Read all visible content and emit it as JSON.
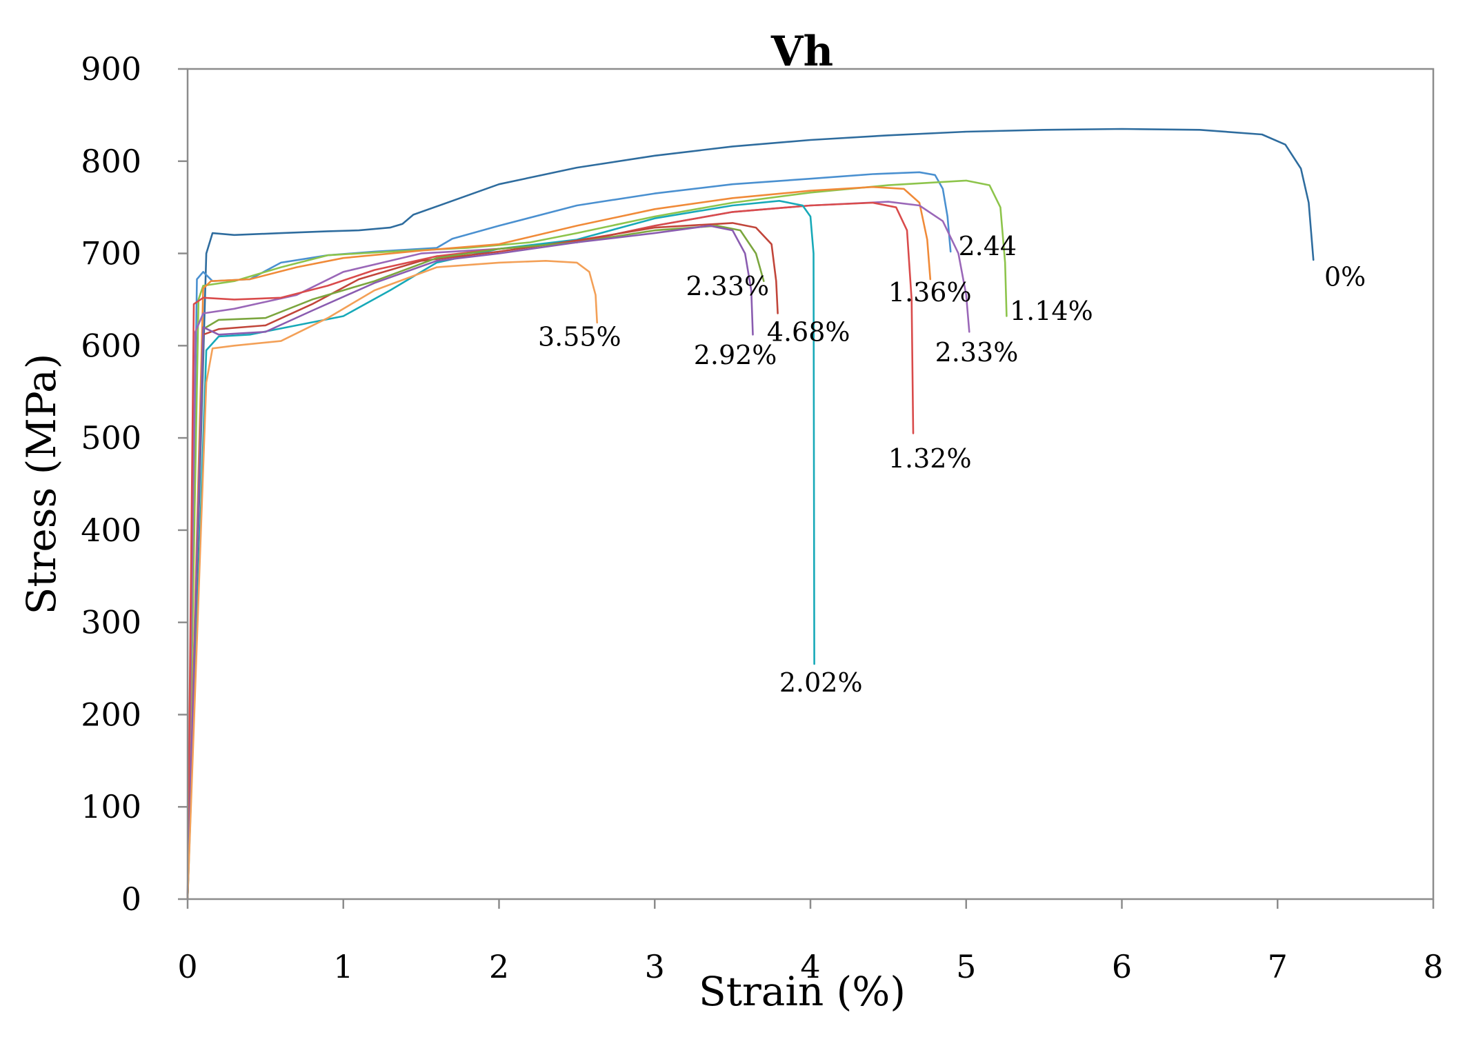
{
  "chart_data": {
    "type": "line",
    "title": "Vh",
    "xlabel": "Strain (%)",
    "ylabel": "Stress (MPa)",
    "xlim": [
      0,
      8
    ],
    "ylim": [
      0,
      900
    ],
    "xticks": [
      "0",
      "1",
      "2",
      "3",
      "4",
      "5",
      "6",
      "7",
      "8"
    ],
    "yticks": [
      "0",
      "100",
      "200",
      "300",
      "400",
      "500",
      "600",
      "700",
      "800",
      "900"
    ],
    "grid": false,
    "series": [
      {
        "name": "0%",
        "color": "#2e6c9e",
        "label": "0%",
        "label_at": [
          7.3,
          665
        ],
        "points": [
          [
            0,
            0
          ],
          [
            0.12,
            700
          ],
          [
            0.16,
            722
          ],
          [
            0.3,
            720
          ],
          [
            0.6,
            722
          ],
          [
            0.9,
            724
          ],
          [
            1.1,
            725
          ],
          [
            1.3,
            728
          ],
          [
            1.38,
            732
          ],
          [
            1.45,
            742
          ],
          [
            2,
            775
          ],
          [
            2.5,
            793
          ],
          [
            3,
            806
          ],
          [
            3.5,
            816
          ],
          [
            4,
            823
          ],
          [
            4.5,
            828
          ],
          [
            5,
            832
          ],
          [
            5.5,
            834
          ],
          [
            6,
            835
          ],
          [
            6.5,
            834
          ],
          [
            6.9,
            829
          ],
          [
            7.05,
            818
          ],
          [
            7.15,
            792
          ],
          [
            7.2,
            755
          ],
          [
            7.23,
            693
          ]
        ]
      },
      {
        "name": "2.44",
        "color": "#4a90d0",
        "label": "2.44",
        "label_at": [
          4.95,
          698
        ],
        "points": [
          [
            0,
            0
          ],
          [
            0.06,
            672
          ],
          [
            0.1,
            680
          ],
          [
            0.16,
            670
          ],
          [
            0.4,
            672
          ],
          [
            0.6,
            690
          ],
          [
            0.9,
            698
          ],
          [
            1.2,
            702
          ],
          [
            1.6,
            706
          ],
          [
            1.7,
            716
          ],
          [
            2,
            730
          ],
          [
            2.5,
            752
          ],
          [
            3,
            765
          ],
          [
            3.5,
            775
          ],
          [
            4,
            781
          ],
          [
            4.4,
            786
          ],
          [
            4.7,
            788
          ],
          [
            4.8,
            785
          ],
          [
            4.85,
            770
          ],
          [
            4.88,
            740
          ],
          [
            4.9,
            702
          ]
        ]
      },
      {
        "name": "1.14%",
        "color": "#8dc44b",
        "label": "1.14%",
        "label_at": [
          5.28,
          628
        ],
        "points": [
          [
            0,
            0
          ],
          [
            0.07,
            650
          ],
          [
            0.1,
            665
          ],
          [
            0.3,
            670
          ],
          [
            0.6,
            685
          ],
          [
            0.9,
            698
          ],
          [
            1.3,
            702
          ],
          [
            1.8,
            706
          ],
          [
            2.2,
            712
          ],
          [
            2.5,
            722
          ],
          [
            3,
            740
          ],
          [
            3.5,
            755
          ],
          [
            4,
            766
          ],
          [
            4.5,
            774
          ],
          [
            5,
            779
          ],
          [
            5.15,
            774
          ],
          [
            5.22,
            750
          ],
          [
            5.25,
            690
          ],
          [
            5.26,
            632
          ]
        ]
      },
      {
        "name": "1.36%",
        "color": "#f08a38",
        "label": "1.36%",
        "label_at": [
          4.5,
          648
        ],
        "points": [
          [
            0,
            0
          ],
          [
            0.1,
            662
          ],
          [
            0.15,
            670
          ],
          [
            0.4,
            672
          ],
          [
            0.7,
            685
          ],
          [
            1,
            695
          ],
          [
            1.5,
            703
          ],
          [
            2,
            710
          ],
          [
            2.5,
            730
          ],
          [
            3,
            748
          ],
          [
            3.5,
            760
          ],
          [
            4,
            768
          ],
          [
            4.4,
            772
          ],
          [
            4.6,
            770
          ],
          [
            4.7,
            755
          ],
          [
            4.75,
            715
          ],
          [
            4.77,
            672
          ]
        ]
      },
      {
        "name": "2.33% (right)",
        "color": "#9a67b8",
        "label": "2.33%",
        "label_at": [
          4.8,
          583
        ],
        "points": [
          [
            0,
            0
          ],
          [
            0.05,
            615
          ],
          [
            0.1,
            635
          ],
          [
            0.3,
            640
          ],
          [
            0.7,
            655
          ],
          [
            1,
            680
          ],
          [
            1.5,
            700
          ],
          [
            2,
            705
          ],
          [
            2.5,
            712
          ],
          [
            3,
            730
          ],
          [
            3.5,
            745
          ],
          [
            4,
            752
          ],
          [
            4.5,
            756
          ],
          [
            4.7,
            752
          ],
          [
            4.85,
            735
          ],
          [
            4.95,
            700
          ],
          [
            5,
            655
          ],
          [
            5.02,
            615
          ]
        ]
      },
      {
        "name": "1.32%",
        "color": "#d94b4b",
        "label": "1.32%",
        "label_at": [
          4.5,
          468
        ],
        "points": [
          [
            0,
            0
          ],
          [
            0.04,
            645
          ],
          [
            0.1,
            652
          ],
          [
            0.3,
            650
          ],
          [
            0.6,
            652
          ],
          [
            0.9,
            665
          ],
          [
            1.2,
            682
          ],
          [
            1.6,
            697
          ],
          [
            2,
            705
          ],
          [
            2.5,
            712
          ],
          [
            3,
            730
          ],
          [
            3.5,
            745
          ],
          [
            4,
            752
          ],
          [
            4.4,
            755
          ],
          [
            4.55,
            750
          ],
          [
            4.62,
            725
          ],
          [
            4.65,
            650
          ],
          [
            4.66,
            505
          ]
        ]
      },
      {
        "name": "2.02%",
        "color": "#17a9b8",
        "label": "2.02%",
        "label_at": [
          3.8,
          225
        ],
        "points": [
          [
            0,
            0
          ],
          [
            0.12,
            595
          ],
          [
            0.2,
            610
          ],
          [
            0.4,
            612
          ],
          [
            0.7,
            622
          ],
          [
            1,
            632
          ],
          [
            1.3,
            660
          ],
          [
            1.6,
            690
          ],
          [
            2,
            705
          ],
          [
            2.5,
            715
          ],
          [
            3,
            738
          ],
          [
            3.5,
            752
          ],
          [
            3.8,
            757
          ],
          [
            3.95,
            752
          ],
          [
            4,
            740
          ],
          [
            4.02,
            700
          ],
          [
            4.025,
            255
          ]
        ]
      },
      {
        "name": "4.68%",
        "color": "#c1453a",
        "label": "4.68%",
        "label_at": [
          3.72,
          605
        ],
        "points": [
          [
            0,
            0
          ],
          [
            0.1,
            612
          ],
          [
            0.2,
            618
          ],
          [
            0.5,
            622
          ],
          [
            0.8,
            645
          ],
          [
            1.1,
            672
          ],
          [
            1.5,
            692
          ],
          [
            2,
            702
          ],
          [
            2.5,
            714
          ],
          [
            3,
            728
          ],
          [
            3.5,
            733
          ],
          [
            3.65,
            728
          ],
          [
            3.75,
            710
          ],
          [
            3.78,
            670
          ],
          [
            3.79,
            635
          ]
        ]
      },
      {
        "name": "2.33% (left)",
        "color": "#7ba63e",
        "label": "2.33%",
        "label_at": [
          3.2,
          655
        ],
        "points": [
          [
            0,
            0
          ],
          [
            0.1,
            618
          ],
          [
            0.2,
            628
          ],
          [
            0.5,
            630
          ],
          [
            0.8,
            650
          ],
          [
            1.2,
            670
          ],
          [
            1.6,
            695
          ],
          [
            2,
            705
          ],
          [
            2.5,
            712
          ],
          [
            3,
            725
          ],
          [
            3.4,
            730
          ],
          [
            3.55,
            725
          ],
          [
            3.65,
            700
          ],
          [
            3.7,
            670
          ]
        ]
      },
      {
        "name": "2.92%",
        "color": "#8a5cb0",
        "label": "2.92%",
        "label_at": [
          3.25,
          580
        ],
        "points": [
          [
            0,
            0
          ],
          [
            0.1,
            620
          ],
          [
            0.2,
            612
          ],
          [
            0.5,
            615
          ],
          [
            0.8,
            638
          ],
          [
            1.2,
            668
          ],
          [
            1.6,
            692
          ],
          [
            2,
            700
          ],
          [
            2.5,
            712
          ],
          [
            3,
            722
          ],
          [
            3.35,
            730
          ],
          [
            3.5,
            725
          ],
          [
            3.58,
            700
          ],
          [
            3.62,
            660
          ],
          [
            3.63,
            612
          ]
        ]
      },
      {
        "name": "3.55%",
        "color": "#f3a057",
        "label": "3.55%",
        "label_at": [
          2.25,
          600
        ],
        "points": [
          [
            0,
            0
          ],
          [
            0.12,
            560
          ],
          [
            0.16,
            597
          ],
          [
            0.3,
            600
          ],
          [
            0.6,
            605
          ],
          [
            0.9,
            630
          ],
          [
            1.2,
            660
          ],
          [
            1.6,
            685
          ],
          [
            2,
            690
          ],
          [
            2.3,
            692
          ],
          [
            2.5,
            690
          ],
          [
            2.58,
            680
          ],
          [
            2.62,
            655
          ],
          [
            2.63,
            625
          ]
        ]
      }
    ]
  }
}
